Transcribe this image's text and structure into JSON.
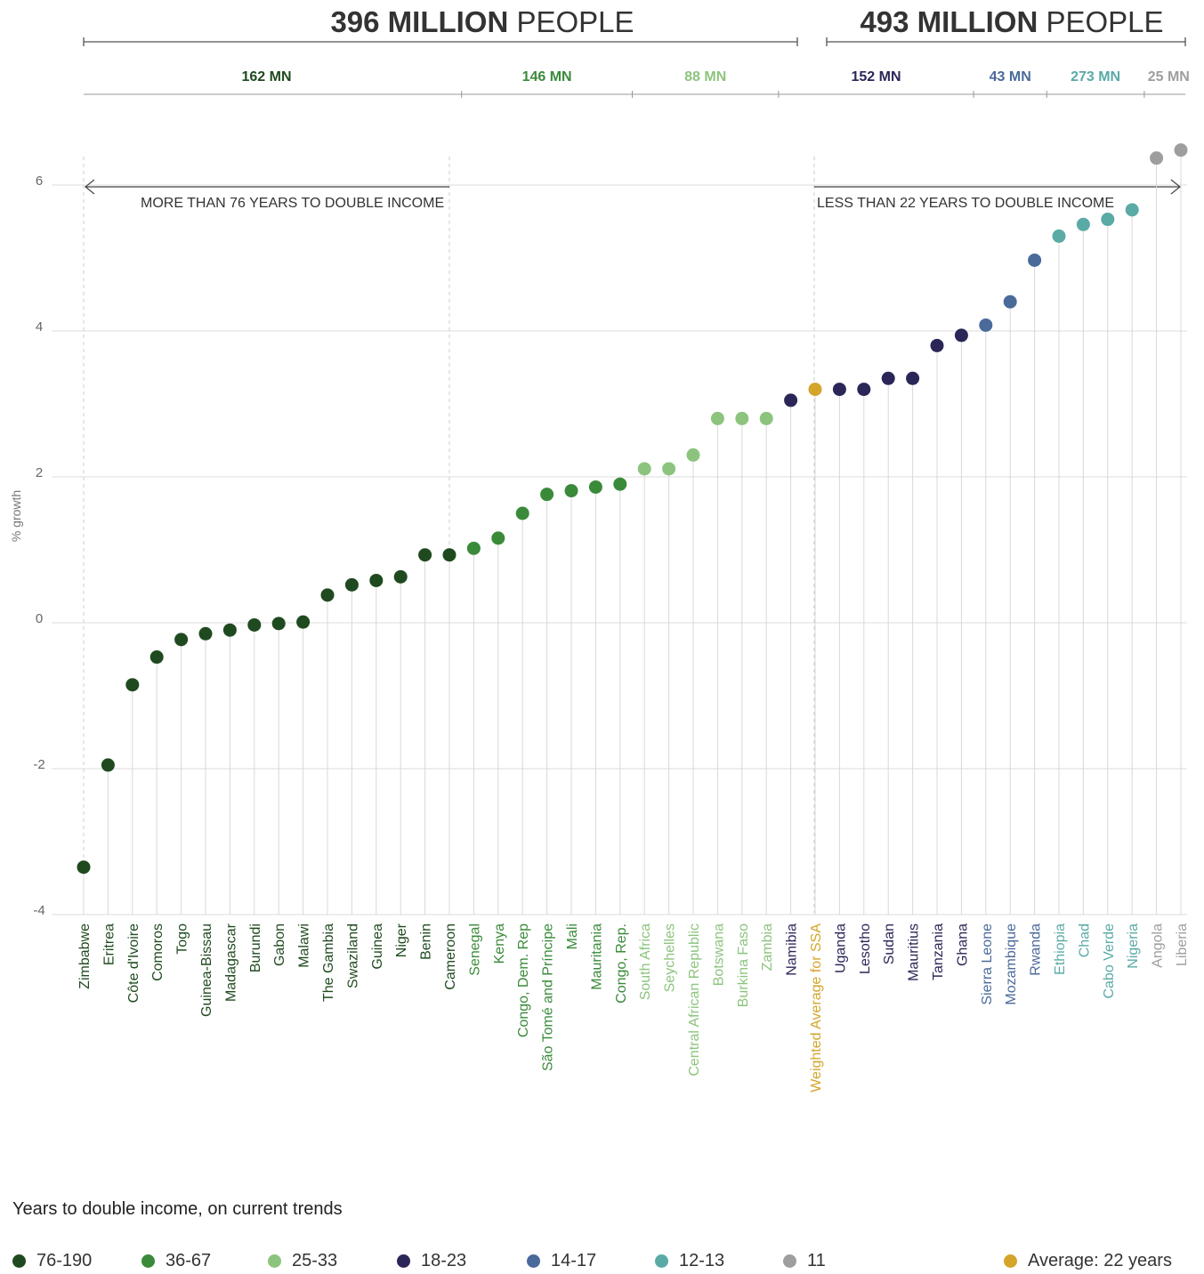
{
  "headers": {
    "left": {
      "bold": "396 MILLION",
      "light": "PEOPLE"
    },
    "right": {
      "bold": "493 MILLION",
      "light": "PEOPLE"
    }
  },
  "populations": [
    {
      "label": "162 MN",
      "group": "g1"
    },
    {
      "label": "146 MN",
      "group": "g2"
    },
    {
      "label": "88 MN",
      "group": "g3"
    },
    {
      "label": "152 MN",
      "group": "g4"
    },
    {
      "label": "43 MN",
      "group": "g5"
    },
    {
      "label": "273 MN",
      "group": "g6"
    },
    {
      "label": "25 MN",
      "group": "g7"
    }
  ],
  "annotations": {
    "left": "MORE THAN 76 YEARS TO DOUBLE INCOME",
    "right": "LESS THAN 22 YEARS TO DOUBLE INCOME"
  },
  "colors": {
    "g1": "#1f4a1f",
    "g2": "#3a8a3a",
    "g3": "#8cc47e",
    "g4": "#2a2758",
    "g5": "#4a6a9a",
    "g6": "#5aaaa6",
    "g7": "#9e9e9e",
    "avg": "#d4a52a"
  },
  "legend": {
    "title": "Years to double income, on current trends",
    "items": [
      {
        "label": "76-190",
        "group": "g1"
      },
      {
        "label": "36-67",
        "group": "g2"
      },
      {
        "label": "25-33",
        "group": "g3"
      },
      {
        "label": "18-23",
        "group": "g4"
      },
      {
        "label": "14-17",
        "group": "g5"
      },
      {
        "label": "12-13",
        "group": "g6"
      },
      {
        "label": "11",
        "group": "g7"
      },
      {
        "label": "Average: 22 years",
        "group": "avg"
      }
    ]
  },
  "chart_data": {
    "type": "scatter",
    "ylabel": "% growth",
    "ylim": [
      -4,
      7
    ],
    "yticks": [
      -4,
      -2,
      0,
      2,
      4,
      6
    ],
    "grid": true,
    "points": [
      {
        "country": "Zimbabwe",
        "value": -3.35,
        "group": "g1"
      },
      {
        "country": "Eritrea",
        "value": -1.95,
        "group": "g1"
      },
      {
        "country": "Côte d'Ivoire",
        "value": -0.85,
        "group": "g1"
      },
      {
        "country": "Comoros",
        "value": -0.47,
        "group": "g1"
      },
      {
        "country": "Togo",
        "value": -0.23,
        "group": "g1"
      },
      {
        "country": "Guinea-Bissau",
        "value": -0.15,
        "group": "g1"
      },
      {
        "country": "Madagascar",
        "value": -0.1,
        "group": "g1"
      },
      {
        "country": "Burundi",
        "value": -0.03,
        "group": "g1"
      },
      {
        "country": "Gabon",
        "value": -0.01,
        "group": "g1"
      },
      {
        "country": "Malawi",
        "value": 0.01,
        "group": "g1"
      },
      {
        "country": "The Gambia",
        "value": 0.38,
        "group": "g1"
      },
      {
        "country": "Swaziland",
        "value": 0.52,
        "group": "g1"
      },
      {
        "country": "Guinea",
        "value": 0.58,
        "group": "g1"
      },
      {
        "country": "Niger",
        "value": 0.63,
        "group": "g1"
      },
      {
        "country": "Benin",
        "value": 0.93,
        "group": "g1"
      },
      {
        "country": "Cameroon",
        "value": 0.93,
        "group": "g1"
      },
      {
        "country": "Senegal",
        "value": 1.02,
        "group": "g2"
      },
      {
        "country": "Kenya",
        "value": 1.16,
        "group": "g2"
      },
      {
        "country": "Congo, Dem. Rep",
        "value": 1.5,
        "group": "g2"
      },
      {
        "country": "São Tomé and Príncipe",
        "value": 1.76,
        "group": "g2"
      },
      {
        "country": "Mali",
        "value": 1.81,
        "group": "g2"
      },
      {
        "country": "Mauritania",
        "value": 1.86,
        "group": "g2"
      },
      {
        "country": "Congo, Rep.",
        "value": 1.9,
        "group": "g2"
      },
      {
        "country": "South Africa",
        "value": 2.11,
        "group": "g3"
      },
      {
        "country": "Seychelles",
        "value": 2.11,
        "group": "g3"
      },
      {
        "country": "Central African Republic",
        "value": 2.3,
        "group": "g3"
      },
      {
        "country": "Botswana",
        "value": 2.8,
        "group": "g3"
      },
      {
        "country": "Burkina Faso",
        "value": 2.8,
        "group": "g3"
      },
      {
        "country": "Zambia",
        "value": 2.8,
        "group": "g3"
      },
      {
        "country": "Namibia",
        "value": 3.05,
        "group": "g4"
      },
      {
        "country": "Weighted Average for SSA",
        "value": 3.2,
        "group": "avg"
      },
      {
        "country": "Uganda",
        "value": 3.2,
        "group": "g4"
      },
      {
        "country": "Lesotho",
        "value": 3.2,
        "group": "g4"
      },
      {
        "country": "Sudan",
        "value": 3.35,
        "group": "g4"
      },
      {
        "country": "Mauritius",
        "value": 3.35,
        "group": "g4"
      },
      {
        "country": "Tanzania",
        "value": 3.8,
        "group": "g4"
      },
      {
        "country": "Ghana",
        "value": 3.94,
        "group": "g4"
      },
      {
        "country": "Sierra Leone",
        "value": 4.08,
        "group": "g5"
      },
      {
        "country": "Mozambique",
        "value": 4.4,
        "group": "g5"
      },
      {
        "country": "Rwanda",
        "value": 4.97,
        "group": "g5"
      },
      {
        "country": "Ethiopia",
        "value": 5.3,
        "group": "g6"
      },
      {
        "country": "Chad",
        "value": 5.46,
        "group": "g6"
      },
      {
        "country": "Cabo Verde",
        "value": 5.53,
        "group": "g6"
      },
      {
        "country": "Nigeria",
        "value": 5.66,
        "group": "g6"
      },
      {
        "country": "Angola",
        "value": 6.37,
        "group": "g7"
      },
      {
        "country": "Liberia",
        "value": 6.48,
        "group": "g7"
      }
    ]
  }
}
